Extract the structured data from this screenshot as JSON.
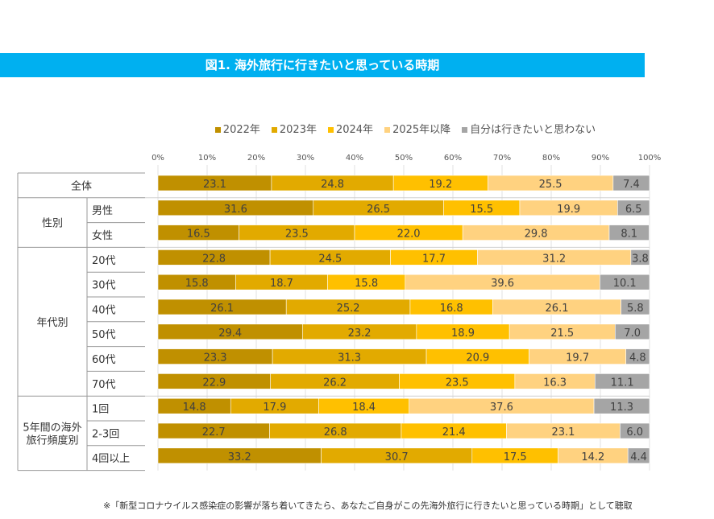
{
  "title": "図1. 海外旅行に行きたいと思っている時期",
  "footnote": "※「新型コロナウイルス感染症の影響が落ち着いてきたら、あなたご自身がこの先海外旅行に行きたいと思っている時期」として聴取",
  "chart_data": {
    "type": "bar",
    "orientation": "horizontal",
    "stacked": "percent",
    "title": "図1. 海外旅行に行きたいと思っている時期",
    "xlim": [
      0,
      100
    ],
    "x_ticks": [
      "0%",
      "10%",
      "20%",
      "30%",
      "40%",
      "50%",
      "60%",
      "70%",
      "80%",
      "90%",
      "100%"
    ],
    "grid": true,
    "legend_position": "top",
    "groups": [
      {
        "label": "全体",
        "rows": [
          0
        ]
      },
      {
        "label": "性別",
        "rows": [
          1,
          2
        ]
      },
      {
        "label": "年代別",
        "rows": [
          3,
          4,
          5,
          6,
          7,
          8
        ]
      },
      {
        "label": "5年間の海外旅行頻度別",
        "rows": [
          9,
          10,
          11
        ]
      }
    ],
    "categories": [
      "全体",
      "男性",
      "女性",
      "20代",
      "30代",
      "40代",
      "50代",
      "60代",
      "70代",
      "1回",
      "2-3回",
      "4回以上"
    ],
    "series": [
      {
        "name": "2022年",
        "color": "#c09000",
        "values": [
          23.1,
          31.6,
          16.5,
          22.8,
          15.8,
          26.1,
          29.4,
          23.3,
          22.9,
          14.8,
          22.7,
          33.2
        ]
      },
      {
        "name": "2023年",
        "color": "#e2aa00",
        "values": [
          24.8,
          26.5,
          23.5,
          24.5,
          18.7,
          25.2,
          23.2,
          31.3,
          26.2,
          17.9,
          26.8,
          30.7
        ]
      },
      {
        "name": "2024年",
        "color": "#ffc000",
        "values": [
          19.2,
          15.5,
          22.0,
          17.7,
          15.8,
          16.8,
          18.9,
          20.9,
          23.5,
          18.4,
          21.4,
          17.5
        ]
      },
      {
        "name": "2025年以降",
        "color": "#ffd280",
        "values": [
          25.5,
          19.9,
          29.8,
          31.2,
          39.6,
          26.1,
          21.5,
          19.7,
          16.3,
          37.6,
          23.1,
          14.2
        ]
      },
      {
        "name": "自分は行きたいと思わない",
        "color": "#a5a5a5",
        "values": [
          7.4,
          6.5,
          8.1,
          3.8,
          10.1,
          5.8,
          7.0,
          4.8,
          11.1,
          11.3,
          6.0,
          4.4
        ]
      }
    ]
  }
}
